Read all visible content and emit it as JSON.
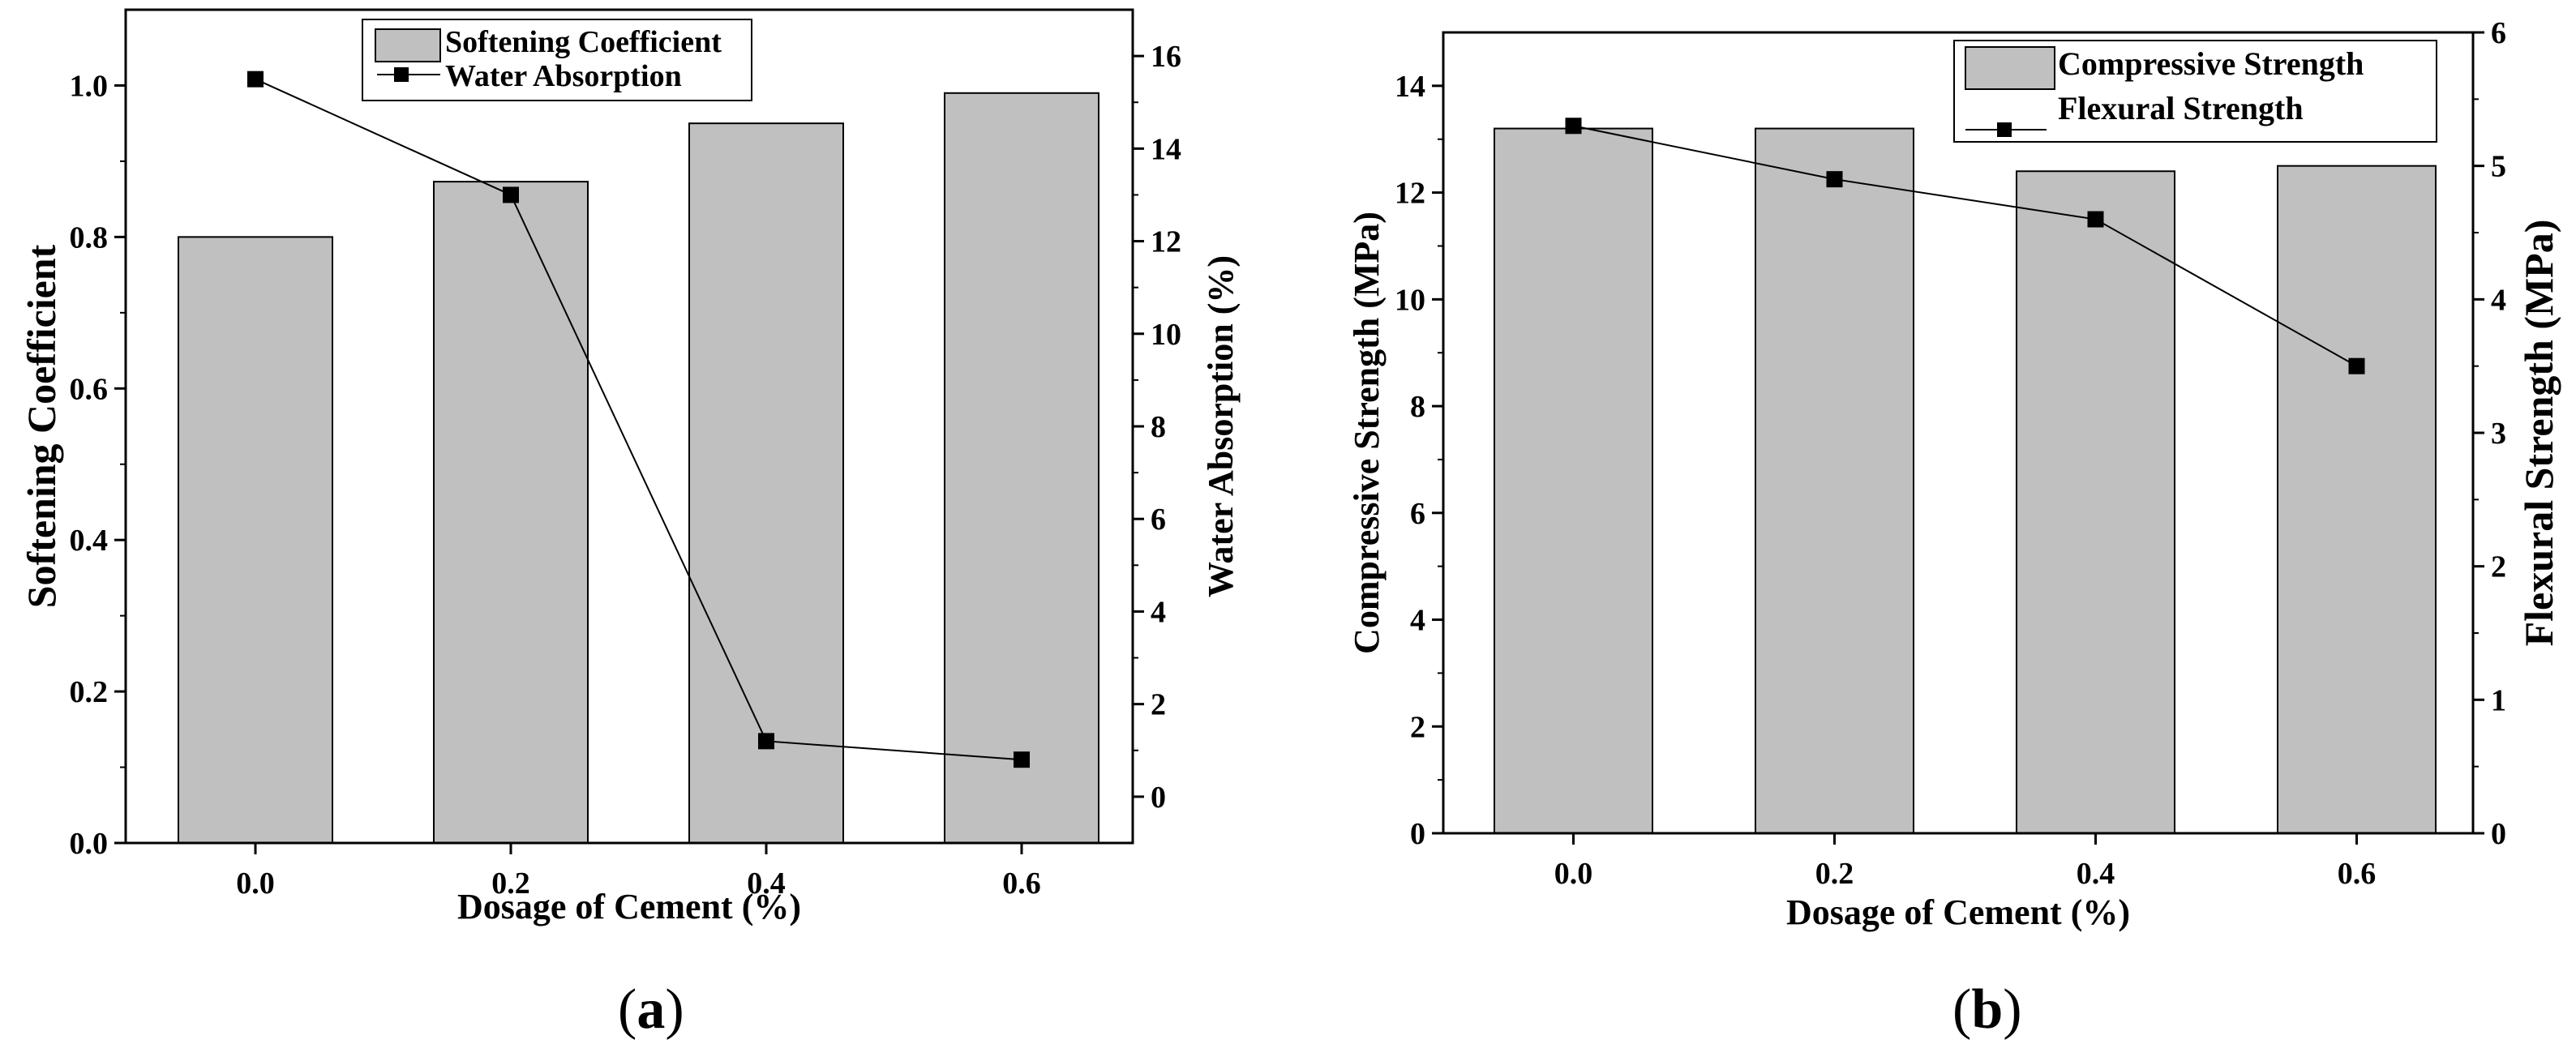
{
  "colors": {
    "bar_fill": "#c0c0c0",
    "bar_stroke": "#000000",
    "line": "#000000",
    "marker": "#000000"
  },
  "panels": {
    "a": {
      "label_open": "(",
      "label_letter": "a",
      "label_close": ")"
    },
    "b": {
      "label_open": "(",
      "label_letter": "b",
      "label_close": ")"
    }
  },
  "chart_data": [
    {
      "type": "bar+line",
      "panel": "a",
      "categories": [
        "0.0",
        "0.2",
        "0.4",
        "0.6"
      ],
      "xlabel": "Dosage of Cement (%)",
      "ylabel": "Softening Coefficient",
      "y2label": "Water Absorption (%)",
      "ylim": [
        0,
        1.1
      ],
      "y2lim": [
        -1,
        17
      ],
      "yticks": [
        "0.0",
        "0.2",
        "0.4",
        "0.6",
        "0.8",
        "1.0"
      ],
      "y2ticks": [
        "0",
        "2",
        "4",
        "6",
        "8",
        "10",
        "12",
        "14",
        "16"
      ],
      "legend_position": "top-center",
      "series": [
        {
          "name": "Softening Coefficient",
          "type": "bar",
          "axis": "left",
          "values": [
            0.8,
            0.873,
            0.95,
            0.99
          ]
        },
        {
          "name": "Water Absorption",
          "type": "line",
          "axis": "right",
          "values": [
            15.5,
            13.0,
            1.2,
            0.8
          ]
        }
      ]
    },
    {
      "type": "bar+line",
      "panel": "b",
      "categories": [
        "0.0",
        "0.2",
        "0.4",
        "0.6"
      ],
      "xlabel": "Dosage of Cement (%)",
      "ylabel": "Compressive Strength (MPa)",
      "y2label": "Flexural Strength (MPa)",
      "ylim": [
        0,
        15
      ],
      "y2lim": [
        0,
        6
      ],
      "yticks": [
        "0",
        "2",
        "4",
        "6",
        "8",
        "10",
        "12",
        "14"
      ],
      "y2ticks": [
        "0",
        "1",
        "2",
        "3",
        "4",
        "5",
        "6"
      ],
      "legend_position": "top-right",
      "series": [
        {
          "name": "Compressive Strength",
          "type": "bar",
          "axis": "left",
          "values": [
            13.2,
            13.2,
            12.4,
            12.5
          ]
        },
        {
          "name": "Flexural Strength",
          "type": "line",
          "axis": "right",
          "values": [
            5.3,
            4.9,
            4.6,
            3.5
          ]
        }
      ]
    }
  ]
}
